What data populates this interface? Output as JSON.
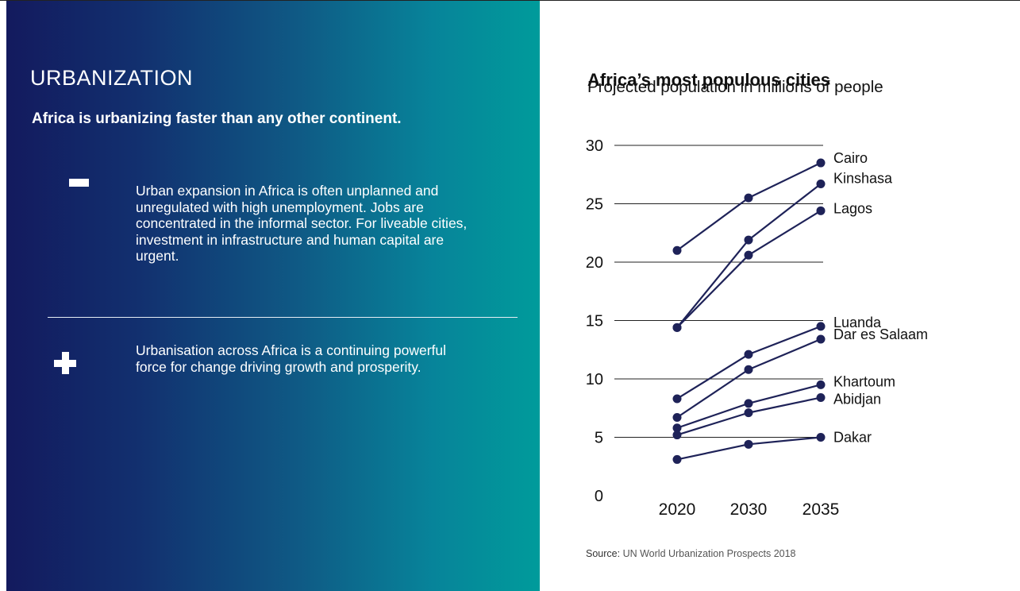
{
  "panel": {
    "title": "URBANIZATION",
    "subtitle": "Africa is urbanizing faster than any other continent.",
    "points": [
      {
        "icon": "minus-icon",
        "text": "Urban expansion in Africa is often unplanned and unregulated with high unemployment. Jobs are concentrated in the informal sector. For liveable cities, investment in infrastructure and human capital are urgent."
      },
      {
        "icon": "plus-icon",
        "text": "Urbanisation across Africa is a continuing powerful force for change driving growth and prosperity."
      }
    ]
  },
  "source": {
    "label": "Source:",
    "text": "UN World Urbanization Prospects 2018"
  },
  "chart_data": {
    "type": "line",
    "title": "Africa’s most populous cities",
    "subtitle": "Projected population in millions of people",
    "x": [
      "2020",
      "2030",
      "2035"
    ],
    "ylim": [
      0,
      30
    ],
    "yticks": [
      "0",
      "5",
      "10",
      "15",
      "20",
      "25",
      "30"
    ],
    "grid": true,
    "series": [
      {
        "name": "Cairo",
        "values": [
          21.0,
          25.5,
          28.5
        ]
      },
      {
        "name": "Kinshasa",
        "values": [
          14.4,
          21.9,
          26.7
        ]
      },
      {
        "name": "Lagos",
        "values": [
          14.4,
          20.6,
          24.4
        ]
      },
      {
        "name": "Luanda",
        "values": [
          8.3,
          12.1,
          14.5
        ]
      },
      {
        "name": "Dar es Salaam",
        "values": [
          6.7,
          10.8,
          13.4
        ]
      },
      {
        "name": "Khartoum",
        "values": [
          5.8,
          7.9,
          9.5
        ]
      },
      {
        "name": "Abidjan",
        "values": [
          5.2,
          7.1,
          8.4
        ]
      },
      {
        "name": "Dakar",
        "values": [
          3.1,
          4.4,
          5.0
        ]
      }
    ],
    "line_color": "#1e2258"
  }
}
